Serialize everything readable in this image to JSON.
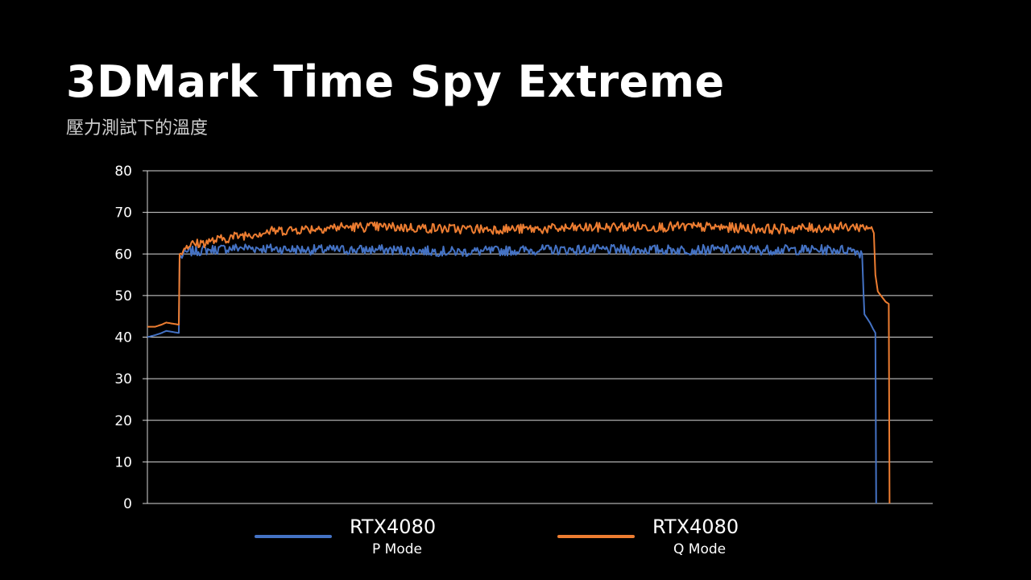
{
  "title": "3DMark Time Spy Extreme",
  "subtitle": "壓力測試下的溫度",
  "colors": {
    "background": "#000000",
    "grid": "#d9d9d9",
    "p_mode": "#4472C4",
    "q_mode": "#ED7D31"
  },
  "legend": [
    {
      "name": "RTX4080",
      "mode": "P Mode",
      "color": "#4472C4"
    },
    {
      "name": "RTX4080",
      "mode": "Q Mode",
      "color": "#ED7D31"
    }
  ],
  "chart_data": {
    "type": "line",
    "title": "3DMark Time Spy Extreme",
    "subtitle": "壓力測試下的溫度",
    "xlabel": "",
    "ylabel": "",
    "ylim": [
      0,
      80
    ],
    "yticks": [
      0,
      10,
      20,
      30,
      40,
      50,
      60,
      70,
      80
    ],
    "xlim": [
      0,
      1000
    ],
    "grid": true,
    "legend_position": "bottom",
    "series": [
      {
        "name": "RTX4080 P Mode",
        "color": "#4472C4",
        "points": [
          [
            0,
            40
          ],
          [
            10,
            40.5
          ],
          [
            18,
            41
          ],
          [
            24,
            41.5
          ],
          [
            40,
            41
          ],
          [
            41,
            59
          ],
          [
            50,
            60.5
          ],
          [
            80,
            61
          ],
          [
            120,
            61.5
          ],
          [
            200,
            61
          ],
          [
            300,
            61
          ],
          [
            400,
            60.5
          ],
          [
            500,
            61
          ],
          [
            600,
            61
          ],
          [
            700,
            61
          ],
          [
            800,
            61
          ],
          [
            900,
            61
          ],
          [
            910,
            60
          ],
          [
            912,
            50
          ],
          [
            913,
            45.5
          ],
          [
            920,
            43.5
          ],
          [
            924,
            42
          ],
          [
            927,
            41
          ],
          [
            928,
            0
          ]
        ]
      },
      {
        "name": "RTX4080 Q Mode",
        "color": "#ED7D31",
        "points": [
          [
            0,
            42.5
          ],
          [
            10,
            42.5
          ],
          [
            18,
            43
          ],
          [
            24,
            43.5
          ],
          [
            40,
            43
          ],
          [
            41,
            60
          ],
          [
            50,
            62
          ],
          [
            80,
            63
          ],
          [
            120,
            64.5
          ],
          [
            160,
            65.5
          ],
          [
            200,
            66
          ],
          [
            250,
            66.5
          ],
          [
            300,
            66.5
          ],
          [
            400,
            66
          ],
          [
            500,
            66
          ],
          [
            600,
            66.5
          ],
          [
            700,
            66.5
          ],
          [
            800,
            66
          ],
          [
            900,
            66.5
          ],
          [
            922,
            66.5
          ],
          [
            925,
            65
          ],
          [
            927,
            55
          ],
          [
            930,
            51
          ],
          [
            940,
            48.5
          ],
          [
            944,
            48
          ],
          [
            945,
            0
          ]
        ]
      }
    ]
  }
}
